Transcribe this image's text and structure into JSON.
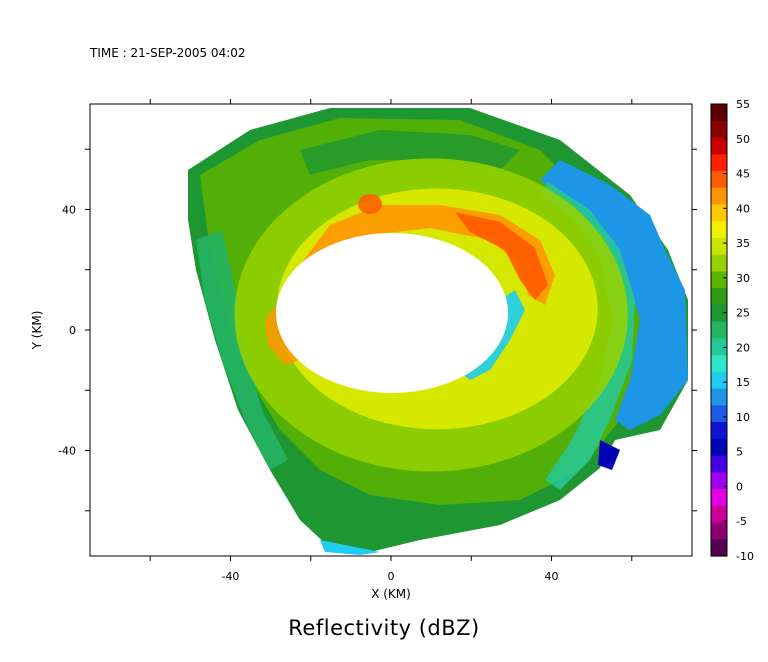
{
  "header": {
    "time_label": "TIME : 21-SEP-2005 04:02"
  },
  "caption": "Reflectivity (dBZ)",
  "chart_data": {
    "type": "heatmap",
    "title": "Reflectivity (dBZ)",
    "subtitle": "TIME : 21-SEP-2005 04:02",
    "xlabel": "X (KM)",
    "ylabel": "Y (KM)",
    "xlim": [
      -75,
      75
    ],
    "ylim": [
      -75,
      75
    ],
    "xticks": [
      -40,
      0,
      40
    ],
    "yticks": [
      40,
      0,
      -40
    ],
    "colorbar": {
      "label": "",
      "ticks": [
        55,
        50,
        45,
        40,
        35,
        30,
        25,
        20,
        15,
        10,
        5,
        0,
        -5,
        -10
      ],
      "range": [
        -10,
        55
      ],
      "colors": [
        "#5a0000",
        "#8b0000",
        "#c80000",
        "#ff2000",
        "#ff5a00",
        "#ff9600",
        "#ffc800",
        "#f0f000",
        "#c8e600",
        "#96d200",
        "#5ab400",
        "#2d9b14",
        "#1e9632",
        "#23b464",
        "#28c896",
        "#2de6c8",
        "#1ecdf0",
        "#1e96e6",
        "#1e5ae6",
        "#0f14d2",
        "#0000b4",
        "#4600e6",
        "#a000f0",
        "#e100e1",
        "#c8009b",
        "#8c006e",
        "#550050"
      ]
    },
    "echo_ring": {
      "center": [
        10,
        5
      ],
      "eyewall_inner_radius_km": 28,
      "eyewall_outer_radius_km": 50,
      "max_dbz": 47,
      "max_location_km": [
        35,
        25
      ]
    },
    "coverage_edge": {
      "min_dbz": 10,
      "max_dbz": 18
    }
  }
}
